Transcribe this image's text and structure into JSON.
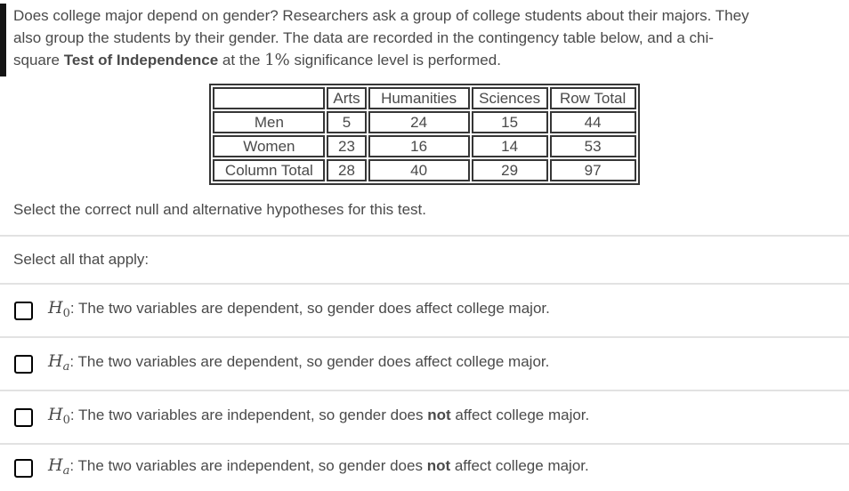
{
  "question": {
    "line1": "Does college major depend on gender? Researchers ask a group of college students about their majors. They",
    "line2": "also group the students by their gender. The data are recorded in the contingency table below, and a chi-",
    "line3_pre": "square ",
    "line3_bold": "Test of Independence",
    "line3_mid": " at the ",
    "line3_significance": "1%",
    "line3_tail": " significance level is performed."
  },
  "contingency_table": {
    "headers": [
      "",
      "Arts",
      "Humanities",
      "Sciences",
      "Row Total"
    ],
    "rows": [
      {
        "label": "Men",
        "arts": "5",
        "humanities": "24",
        "sciences": "15",
        "row_total": "44"
      },
      {
        "label": "Women",
        "arts": "23",
        "humanities": "16",
        "sciences": "14",
        "row_total": "53"
      },
      {
        "label": "Column Total",
        "arts": "28",
        "humanities": "40",
        "sciences": "29",
        "row_total": "97"
      }
    ]
  },
  "prompt": "Select the correct null and alternative hypotheses for this test.",
  "select_all_label": "Select all that apply:",
  "options": [
    {
      "symbol": "H",
      "subscript": "0",
      "text": ": The two variables are dependent, so gender does affect college major.",
      "bold_not": "",
      "text_after": "",
      "checked": false
    },
    {
      "symbol": "H",
      "subscript": "a",
      "text": ": The two variables are dependent, so gender does affect college major.",
      "bold_not": "",
      "text_after": "",
      "checked": false
    },
    {
      "symbol": "H",
      "subscript": "0",
      "text": ": The two variables are independent, so gender does ",
      "bold_not": "not",
      "text_after": " affect college major.",
      "checked": false
    },
    {
      "symbol": "H",
      "subscript": "a",
      "text": ": The two variables are independent, so gender does ",
      "bold_not": "not",
      "text_after": " affect college major.",
      "checked": false
    }
  ],
  "colors": {
    "text": "#4a4a4a",
    "table_border": "#363636",
    "divider": "#e2e2e2",
    "checkbox_border": "#000000",
    "background": "#ffffff"
  }
}
